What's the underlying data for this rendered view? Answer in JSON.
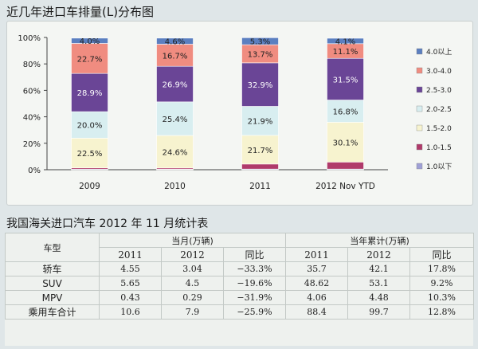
{
  "chart_title": "近几年进口车排量(L)分布图",
  "chart_data": {
    "type": "bar",
    "stacked": true,
    "categories": [
      "2009",
      "2010",
      "2011",
      "2012 Nov YTD"
    ],
    "ylim": [
      0,
      100
    ],
    "yticks": [
      "0%",
      "20%",
      "40%",
      "60%",
      "80%",
      "100%"
    ],
    "series": [
      {
        "name": "1.0以下",
        "color": "#9fa0d6",
        "values": [
          0.5,
          0.4,
          0.5,
          0.5
        ],
        "labels": [
          "",
          "",
          "",
          ""
        ]
      },
      {
        "name": "1.0-1.5",
        "color": "#b03a6a",
        "values": [
          0.9,
          0.9,
          3.8,
          5.3
        ],
        "labels": [
          "",
          "",
          "",
          ""
        ]
      },
      {
        "name": "1.5-2.0",
        "color": "#f7f3cf",
        "values": [
          22.5,
          24.6,
          21.7,
          30.1
        ],
        "labels": [
          "22.5%",
          "24.6%",
          "21.7%",
          "30.1%"
        ]
      },
      {
        "name": "2.0-2.5",
        "color": "#d8eef0",
        "values": [
          20.0,
          25.4,
          21.9,
          16.8
        ],
        "labels": [
          "20.0%",
          "25.4%",
          "21.9%",
          "16.8%"
        ]
      },
      {
        "name": "2.5-3.0",
        "color": "#6a4596",
        "values": [
          28.9,
          26.9,
          32.9,
          31.5
        ],
        "labels": [
          "28.9%",
          "26.9%",
          "32.9%",
          "31.5%"
        ]
      },
      {
        "name": "3.0-4.0",
        "color": "#f08c80",
        "values": [
          22.7,
          16.7,
          13.7,
          11.1
        ],
        "labels": [
          "22.7%",
          "16.7%",
          "13.7%",
          "11.1%"
        ]
      },
      {
        "name": "4.0以上",
        "color": "#5b7fc0",
        "values": [
          4.0,
          4.6,
          5.3,
          4.1
        ],
        "labels": [
          "4.0%",
          "4.6%",
          "5.3%",
          "4.1%"
        ]
      }
    ],
    "legend_order": [
      "4.0以上",
      "3.0-4.0",
      "2.5-3.0",
      "2.0-2.5",
      "1.5-2.0",
      "1.0-1.5",
      "1.0以下"
    ],
    "legend_position": "right",
    "grid": false
  },
  "table": {
    "title": "我国海关进口汽车 2012 年 11 月统计表",
    "col_type": "车型",
    "group_month": "当月(万辆)",
    "group_ytd": "当年累计(万辆)",
    "sub_headers": [
      "2011",
      "2012",
      "同比",
      "2011",
      "2012",
      "同比"
    ],
    "rows": [
      {
        "name": "轿车",
        "values": [
          "4.55",
          "3.04",
          "−33.3%",
          "35.7",
          "42.1",
          "17.8%"
        ]
      },
      {
        "name": "SUV",
        "values": [
          "5.65",
          "4.5",
          "−19.6%",
          "48.62",
          "53.1",
          "9.2%"
        ]
      },
      {
        "name": "MPV",
        "values": [
          "0.43",
          "0.29",
          "−31.9%",
          "4.06",
          "4.48",
          "10.3%"
        ]
      },
      {
        "name": "乘用车合计",
        "values": [
          "10.6",
          "7.9",
          "−25.9%",
          "88.4",
          "99.7",
          "12.8%"
        ]
      }
    ]
  }
}
